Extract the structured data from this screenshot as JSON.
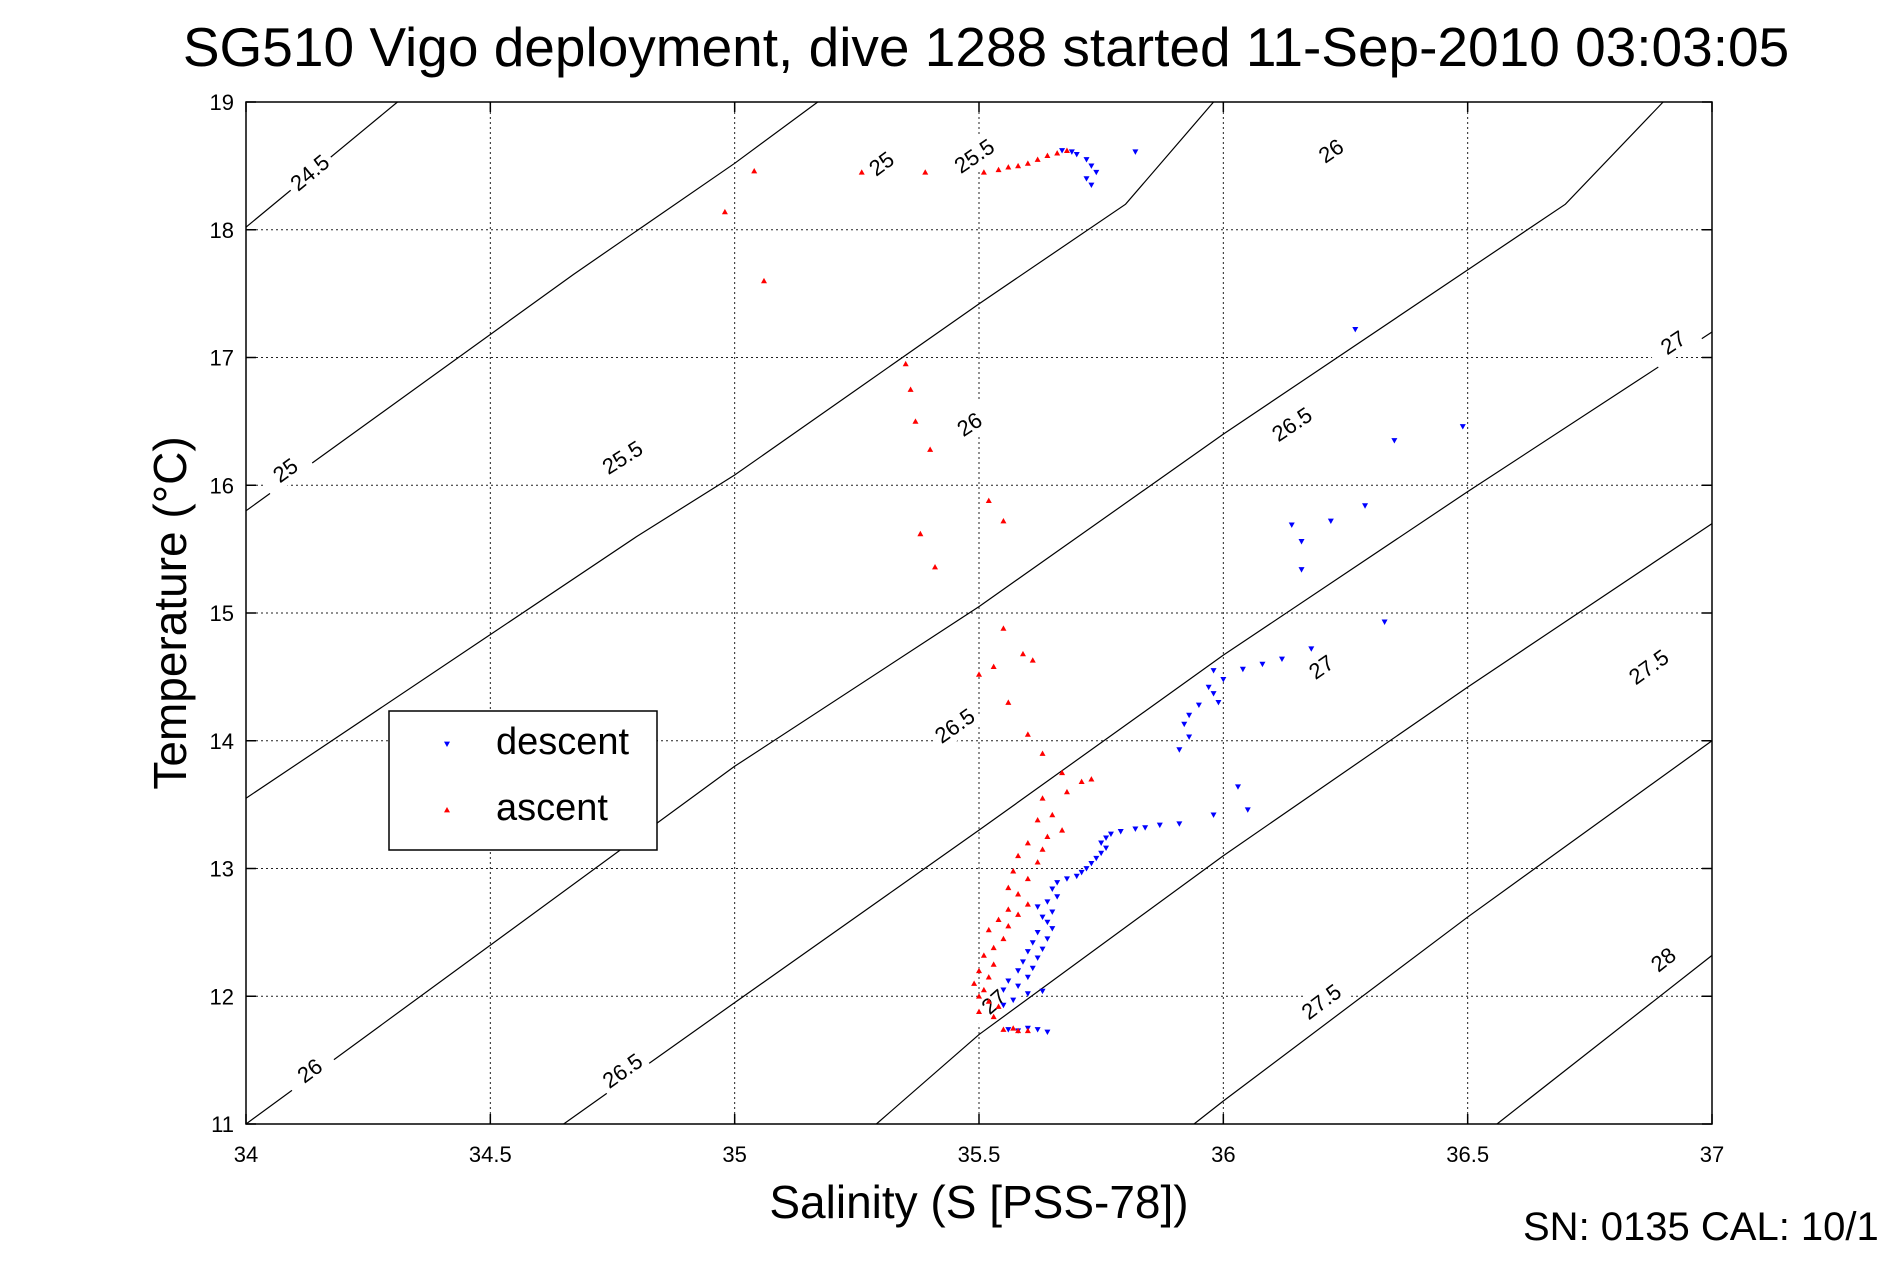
{
  "chart_data": {
    "type": "scatter",
    "title": "SG510 Vigo deployment, dive 1288 started 11-Sep-2010 03:03:05",
    "xlabel": "Salinity (S [PSS-78])",
    "ylabel": "Temperature (°C)",
    "xlim": [
      34,
      37
    ],
    "ylim": [
      11,
      19
    ],
    "xticks": [
      34,
      34.5,
      35,
      35.5,
      36,
      36.5,
      37
    ],
    "xtick_labels": [
      "34",
      "34.5",
      "35",
      "35.5",
      "36",
      "36.5",
      "37"
    ],
    "yticks": [
      11,
      12,
      13,
      14,
      15,
      16,
      17,
      18,
      19
    ],
    "ytick_labels": [
      "11",
      "12",
      "13",
      "14",
      "15",
      "16",
      "17",
      "18",
      "19"
    ],
    "grid": true,
    "legend": {
      "placement": "center-left",
      "entries": [
        "descent",
        "ascent"
      ]
    },
    "footer": "SN: 0135  CAL: 10/1",
    "isopycnals": [
      {
        "level": 24.5,
        "points": [
          [
            34.0,
            18.02
          ],
          [
            34.31,
            19.0
          ]
        ],
        "labels": [
          {
            "text": "24.5",
            "s": 34.13,
            "t": 18.45
          }
        ]
      },
      {
        "level": 25.0,
        "points": [
          [
            34.0,
            15.8
          ],
          [
            34.67,
            17.65
          ],
          [
            35.0,
            18.52
          ],
          [
            35.17,
            19.0
          ]
        ],
        "labels": [
          {
            "text": "25",
            "s": 34.08,
            "t": 16.12
          },
          {
            "text": "25",
            "s": 35.3,
            "t": 18.52
          }
        ]
      },
      {
        "level": 25.5,
        "points": [
          [
            34.0,
            13.55
          ],
          [
            34.8,
            15.6
          ],
          [
            35.0,
            16.08
          ],
          [
            35.5,
            17.42
          ],
          [
            35.8,
            18.2
          ],
          [
            35.98,
            19.0
          ]
        ],
        "labels": [
          {
            "text": "25.5",
            "s": 34.77,
            "t": 16.22
          },
          {
            "text": "25.5",
            "s": 35.49,
            "t": 18.58
          }
        ]
      },
      {
        "level": 26.0,
        "points": [
          [
            34.0,
            11.0
          ],
          [
            35.0,
            13.8
          ],
          [
            35.5,
            15.05
          ],
          [
            36.0,
            16.4
          ],
          [
            36.7,
            18.2
          ],
          [
            36.9,
            19.0
          ]
        ],
        "labels": [
          {
            "text": "26",
            "s": 34.13,
            "t": 11.42
          },
          {
            "text": "26",
            "s": 35.48,
            "t": 16.48
          },
          {
            "text": "26",
            "s": 36.22,
            "t": 18.62
          }
        ]
      },
      {
        "level": 26.5,
        "points": [
          [
            34.65,
            11.0
          ],
          [
            35.0,
            11.95
          ],
          [
            35.5,
            13.3
          ],
          [
            36.0,
            14.67
          ],
          [
            36.5,
            15.95
          ],
          [
            37.0,
            17.2
          ]
        ],
        "labels": [
          {
            "text": "26.5",
            "s": 34.77,
            "t": 11.42
          },
          {
            "text": "26.5",
            "s": 35.45,
            "t": 14.12
          },
          {
            "text": "26.5",
            "s": 36.14,
            "t": 16.48
          }
        ]
      },
      {
        "level": 27.0,
        "points": [
          [
            35.29,
            11.0
          ],
          [
            35.5,
            11.7
          ],
          [
            36.0,
            13.1
          ],
          [
            36.5,
            14.42
          ],
          [
            37.0,
            15.7
          ]
        ],
        "labels": [
          {
            "text": "27",
            "s": 35.53,
            "t": 11.96
          },
          {
            "text": "27",
            "s": 36.2,
            "t": 14.58
          },
          {
            "text": "27",
            "s": 36.92,
            "t": 17.12
          }
        ]
      },
      {
        "level": 27.5,
        "points": [
          [
            35.94,
            11.0
          ],
          [
            36.0,
            11.18
          ],
          [
            36.5,
            12.62
          ],
          [
            37.0,
            14.0
          ]
        ],
        "labels": [
          {
            "text": "27.5",
            "s": 36.2,
            "t": 11.96
          },
          {
            "text": "27.5",
            "s": 36.87,
            "t": 14.58
          }
        ]
      },
      {
        "level": 28.0,
        "points": [
          [
            36.56,
            11.0
          ],
          [
            37.0,
            12.32
          ]
        ],
        "labels": [
          {
            "text": "28",
            "s": 36.9,
            "t": 12.29
          }
        ]
      }
    ],
    "series": [
      {
        "name": "descent",
        "color": "#0000ff",
        "marker": "triangle-down",
        "points": [
          [
            35.67,
            18.62
          ],
          [
            35.69,
            18.61
          ],
          [
            35.7,
            18.59
          ],
          [
            35.72,
            18.55
          ],
          [
            35.73,
            18.5
          ],
          [
            35.74,
            18.45
          ],
          [
            35.72,
            18.4
          ],
          [
            35.73,
            18.35
          ],
          [
            35.82,
            18.61
          ],
          [
            36.27,
            17.22
          ],
          [
            36.49,
            16.46
          ],
          [
            36.35,
            16.35
          ],
          [
            36.29,
            15.84
          ],
          [
            36.22,
            15.72
          ],
          [
            36.14,
            15.69
          ],
          [
            36.16,
            15.56
          ],
          [
            36.16,
            15.34
          ],
          [
            36.33,
            14.93
          ],
          [
            36.18,
            14.72
          ],
          [
            36.12,
            14.64
          ],
          [
            36.08,
            14.6
          ],
          [
            36.04,
            14.56
          ],
          [
            35.98,
            14.55
          ],
          [
            36.0,
            14.48
          ],
          [
            35.97,
            14.42
          ],
          [
            35.98,
            14.37
          ],
          [
            35.99,
            14.3
          ],
          [
            35.95,
            14.28
          ],
          [
            35.93,
            14.2
          ],
          [
            35.92,
            14.13
          ],
          [
            35.93,
            14.03
          ],
          [
            35.91,
            13.93
          ],
          [
            36.03,
            13.64
          ],
          [
            36.05,
            13.46
          ],
          [
            35.98,
            13.42
          ],
          [
            35.91,
            13.35
          ],
          [
            35.87,
            13.34
          ],
          [
            35.84,
            13.32
          ],
          [
            35.82,
            13.31
          ],
          [
            35.79,
            13.29
          ],
          [
            35.77,
            13.27
          ],
          [
            35.76,
            13.24
          ],
          [
            35.75,
            13.2
          ],
          [
            35.76,
            13.16
          ],
          [
            35.75,
            13.12
          ],
          [
            35.74,
            13.08
          ],
          [
            35.73,
            13.04
          ],
          [
            35.72,
            13.0
          ],
          [
            35.71,
            12.97
          ],
          [
            35.7,
            12.94
          ],
          [
            35.68,
            12.92
          ],
          [
            35.66,
            12.89
          ],
          [
            35.65,
            12.84
          ],
          [
            35.66,
            12.78
          ],
          [
            35.64,
            12.74
          ],
          [
            35.62,
            12.7
          ],
          [
            35.65,
            12.66
          ],
          [
            35.63,
            12.62
          ],
          [
            35.64,
            12.58
          ],
          [
            35.65,
            12.53
          ],
          [
            35.62,
            12.5
          ],
          [
            35.64,
            12.45
          ],
          [
            35.61,
            12.42
          ],
          [
            35.63,
            12.37
          ],
          [
            35.6,
            12.35
          ],
          [
            35.62,
            12.3
          ],
          [
            35.59,
            12.27
          ],
          [
            35.61,
            12.22
          ],
          [
            35.58,
            12.2
          ],
          [
            35.6,
            12.15
          ],
          [
            35.56,
            12.12
          ],
          [
            35.58,
            12.08
          ],
          [
            35.55,
            12.05
          ],
          [
            35.6,
            12.02
          ],
          [
            35.63,
            12.04
          ],
          [
            35.57,
            11.97
          ],
          [
            35.55,
            11.93
          ],
          [
            35.6,
            11.75
          ],
          [
            35.62,
            11.74
          ],
          [
            35.64,
            11.72
          ],
          [
            35.58,
            11.73
          ],
          [
            35.56,
            11.74
          ]
        ]
      },
      {
        "name": "ascent",
        "color": "#ff0000",
        "marker": "triangle-up",
        "points": [
          [
            34.98,
            18.14
          ],
          [
            35.04,
            18.46
          ],
          [
            35.26,
            18.45
          ],
          [
            35.39,
            18.45
          ],
          [
            35.51,
            18.45
          ],
          [
            35.54,
            18.47
          ],
          [
            35.56,
            18.49
          ],
          [
            35.58,
            18.5
          ],
          [
            35.6,
            18.52
          ],
          [
            35.62,
            18.55
          ],
          [
            35.64,
            18.58
          ],
          [
            35.66,
            18.6
          ],
          [
            35.68,
            18.62
          ],
          [
            35.06,
            17.6
          ],
          [
            35.35,
            16.95
          ],
          [
            35.36,
            16.75
          ],
          [
            35.37,
            16.5
          ],
          [
            35.4,
            16.28
          ],
          [
            35.38,
            15.62
          ],
          [
            35.41,
            15.36
          ],
          [
            35.52,
            15.88
          ],
          [
            35.55,
            15.72
          ],
          [
            35.55,
            14.88
          ],
          [
            35.5,
            14.52
          ],
          [
            35.53,
            14.58
          ],
          [
            35.59,
            14.68
          ],
          [
            35.61,
            14.63
          ],
          [
            35.56,
            14.3
          ],
          [
            35.6,
            14.05
          ],
          [
            35.63,
            13.9
          ],
          [
            35.67,
            13.75
          ],
          [
            35.71,
            13.68
          ],
          [
            35.73,
            13.7
          ],
          [
            35.68,
            13.6
          ],
          [
            35.63,
            13.55
          ],
          [
            35.65,
            13.42
          ],
          [
            35.62,
            13.38
          ],
          [
            35.67,
            13.3
          ],
          [
            35.64,
            13.25
          ],
          [
            35.6,
            13.2
          ],
          [
            35.63,
            13.15
          ],
          [
            35.58,
            13.1
          ],
          [
            35.62,
            13.05
          ],
          [
            35.57,
            12.98
          ],
          [
            35.6,
            12.92
          ],
          [
            35.56,
            12.85
          ],
          [
            35.58,
            12.8
          ],
          [
            35.6,
            12.72
          ],
          [
            35.56,
            12.68
          ],
          [
            35.58,
            12.64
          ],
          [
            35.54,
            12.6
          ],
          [
            35.56,
            12.55
          ],
          [
            35.52,
            12.52
          ],
          [
            35.55,
            12.45
          ],
          [
            35.53,
            12.38
          ],
          [
            35.51,
            12.32
          ],
          [
            35.53,
            12.25
          ],
          [
            35.5,
            12.2
          ],
          [
            35.52,
            12.15
          ],
          [
            35.49,
            12.1
          ],
          [
            35.51,
            12.05
          ],
          [
            35.5,
            12.0
          ],
          [
            35.52,
            11.96
          ],
          [
            35.54,
            11.92
          ],
          [
            35.5,
            11.88
          ],
          [
            35.53,
            11.84
          ],
          [
            35.55,
            11.74
          ],
          [
            35.58,
            11.73
          ],
          [
            35.6,
            11.73
          ],
          [
            35.57,
            11.75
          ]
        ]
      }
    ]
  }
}
